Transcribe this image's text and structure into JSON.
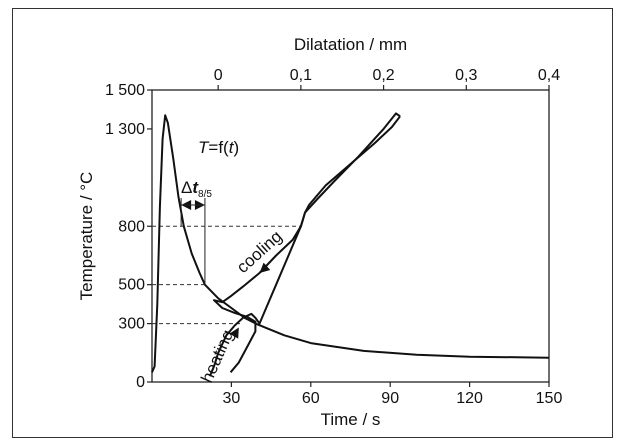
{
  "chart_data": {
    "type": "line",
    "title": "",
    "xlabel": "Time / s",
    "ylabel": "Temperature / °C",
    "x2label": "Dilatation / mm",
    "xlim": [
      0,
      150
    ],
    "ylim": [
      0,
      1500
    ],
    "x2lim": [
      -0.08,
      0.4
    ],
    "x_ticks": [
      {
        "value": 30,
        "label": "30"
      },
      {
        "value": 60,
        "label": "60"
      },
      {
        "value": 90,
        "label": "90"
      },
      {
        "value": 120,
        "label": "120"
      },
      {
        "value": 150,
        "label": "150"
      }
    ],
    "x2_ticks": [
      {
        "value": 0,
        "label": "0"
      },
      {
        "value": 0.1,
        "label": "0,1"
      },
      {
        "value": 0.2,
        "label": "0,2"
      },
      {
        "value": 0.3,
        "label": "0,3"
      },
      {
        "value": 0.4,
        "label": "0,4"
      }
    ],
    "y_ticks": [
      {
        "value": 0,
        "label": "0"
      },
      {
        "value": 300,
        "label": "300"
      },
      {
        "value": 500,
        "label": "500"
      },
      {
        "value": 800,
        "label": "800"
      },
      {
        "value": 1300,
        "label": "1 300"
      },
      {
        "value": 1500,
        "label": "1 500"
      }
    ],
    "reference_lines": [
      {
        "temperature": 800,
        "from_time": 0,
        "to_dilatation": 0.1
      },
      {
        "temperature": 500,
        "from_time": 0,
        "to_time": 20
      },
      {
        "temperature": 300,
        "from_time": 0,
        "to_dilatation": 0.03
      }
    ],
    "delta_t": {
      "t_start": 11,
      "t_end": 20
    },
    "series": [
      {
        "name": "T=f(t)",
        "axis": "time",
        "x": [
          0,
          1,
          2,
          3,
          4,
          5,
          6,
          8,
          10,
          12,
          15,
          18,
          20,
          25,
          30,
          35,
          40,
          50,
          60,
          80,
          100,
          120,
          150
        ],
        "y": [
          50,
          80,
          400,
          900,
          1250,
          1370,
          1330,
          1150,
          950,
          800,
          660,
          560,
          500,
          430,
          380,
          330,
          295,
          240,
          200,
          160,
          140,
          130,
          125
        ]
      },
      {
        "name": "heating",
        "axis": "dilatation",
        "x": [
          -0.01,
          -0.005,
          0.0,
          0.01,
          0.02,
          0.03,
          0.04,
          0.045,
          0.05,
          0.06,
          0.07,
          0.085,
          0.1,
          0.105,
          0.11,
          0.13,
          0.16,
          0.19,
          0.21,
          0.22
        ],
        "y": [
          30,
          80,
          150,
          240,
          290,
          330,
          350,
          330,
          300,
          400,
          500,
          650,
          800,
          870,
          910,
          1010,
          1120,
          1230,
          1310,
          1365
        ]
      },
      {
        "name": "cooling",
        "axis": "dilatation",
        "x": [
          0.22,
          0.215,
          0.2,
          0.17,
          0.14,
          0.12,
          0.105,
          0.1,
          0.09,
          0.07,
          0.05,
          0.03,
          0.015,
          0.005,
          -0.005,
          0.005,
          0.02,
          0.035,
          0.045,
          0.045,
          0.035,
          0.025,
          0.015
        ],
        "y": [
          1365,
          1380,
          1300,
          1160,
          1030,
          940,
          870,
          800,
          730,
          650,
          560,
          490,
          440,
          410,
          420,
          380,
          355,
          335,
          310,
          260,
          180,
          100,
          50
        ]
      }
    ],
    "annotations": [
      {
        "text": "cooling"
      },
      {
        "text": "heating"
      }
    ],
    "curve_label": {
      "T": "T",
      "eq": "=f(",
      "t": "t",
      "close": ")"
    },
    "delta_label": {
      "delta": "Δ",
      "t": "t",
      "sub": "8/5"
    }
  }
}
